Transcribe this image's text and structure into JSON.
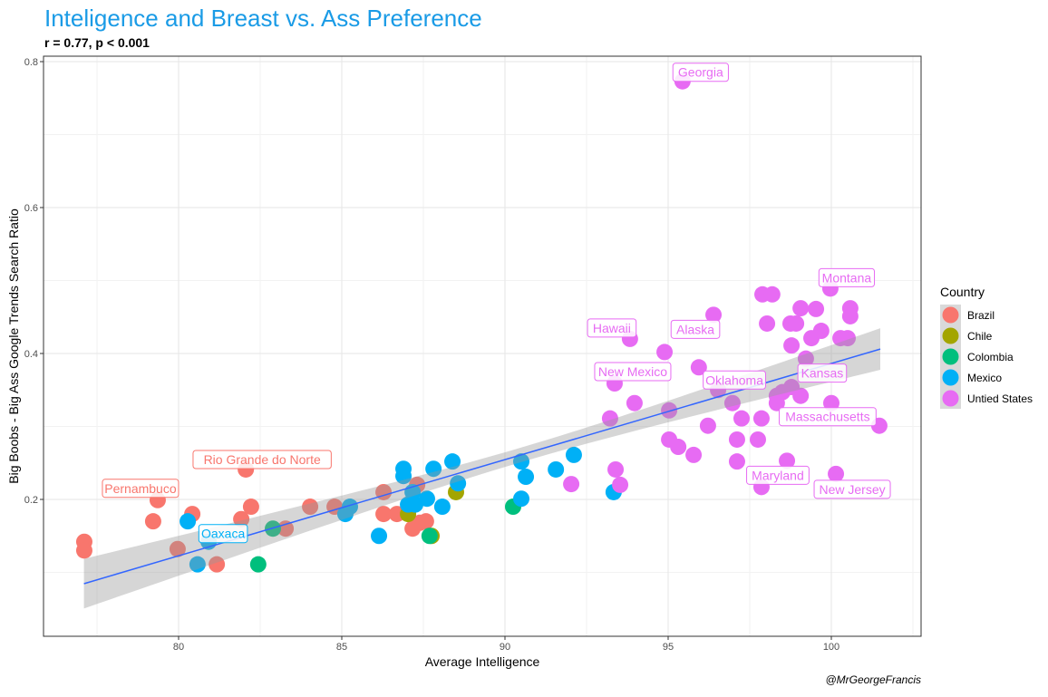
{
  "chart_data": {
    "type": "scatter",
    "title": "Inteligence and Breast vs. Ass Preference",
    "subtitle": "r = 0.77, p < 0.001",
    "xlabel": "Average Intelligence",
    "ylabel": "Big Boobs - Big Ass Google Trends Search Ratio",
    "caption": "@MrGeorgeFrancis",
    "xlim": [
      76.7,
      103.5
    ],
    "ylim": [
      0.012,
      0.807
    ],
    "xticks": [
      80,
      85,
      90,
      95,
      100
    ],
    "xtick_labels": [
      "80",
      "85",
      "90",
      "95",
      "100"
    ],
    "yticks": [
      0.2,
      0.4,
      0.6,
      0.8
    ],
    "ytick_labels": [
      "0.2",
      "0.4",
      "0.6",
      "0.8"
    ],
    "grid": true,
    "legend": {
      "title": "Country",
      "placement": "right"
    },
    "trend": {
      "x_start": 77.1,
      "x_end": 101.5,
      "y_start": 0.0845,
      "slope": 0.01318,
      "ci_center_x": 90.5,
      "ci_min_halfwidth": 0.01,
      "ci_k": 5.88e-06
    },
    "colors": {
      "Brazil": "#F8766D",
      "Chile": "#A3A500",
      "Colombia": "#00BF7D",
      "Mexico": "#00B0F6",
      "Untied States": "#E76BF3",
      "trend": "#3366FF",
      "title": "#1a9be6"
    },
    "series": [
      {
        "name": "Brazil",
        "points": [
          [
            77.11,
            0.142
          ],
          [
            77.11,
            0.13
          ],
          [
            79.22,
            0.17
          ],
          [
            79.36,
            0.199,
            "Pernambuco"
          ],
          [
            79.97,
            0.132
          ],
          [
            80.42,
            0.18
          ],
          [
            81.17,
            0.111
          ],
          [
            81.92,
            0.173
          ],
          [
            82.06,
            0.241,
            "Rio Grande do Norte"
          ],
          [
            82.22,
            0.19
          ],
          [
            83.28,
            0.16
          ],
          [
            84.03,
            0.19
          ],
          [
            84.78,
            0.19
          ],
          [
            86.28,
            0.21
          ],
          [
            86.28,
            0.18
          ],
          [
            86.69,
            0.18
          ],
          [
            87.31,
            0.22
          ],
          [
            87.17,
            0.16
          ],
          [
            87.58,
            0.17
          ],
          [
            87.39,
            0.168
          ]
        ]
      },
      {
        "name": "Chile",
        "points": [
          [
            87.03,
            0.18
          ],
          [
            87.75,
            0.15
          ],
          [
            88.5,
            0.21
          ]
        ]
      },
      {
        "name": "Colombia",
        "points": [
          [
            82.89,
            0.16
          ],
          [
            82.44,
            0.111
          ],
          [
            90.25,
            0.19
          ],
          [
            87.69,
            0.15
          ]
        ]
      },
      {
        "name": "Mexico",
        "points": [
          [
            80.28,
            0.17
          ],
          [
            80.58,
            0.111
          ],
          [
            80.92,
            0.142,
            "Oaxaca"
          ],
          [
            85.11,
            0.18
          ],
          [
            85.25,
            0.19
          ],
          [
            86.14,
            0.15
          ],
          [
            86.89,
            0.242
          ],
          [
            86.89,
            0.232
          ],
          [
            87.81,
            0.242
          ],
          [
            88.39,
            0.252
          ],
          [
            88.56,
            0.222
          ],
          [
            88.08,
            0.19
          ],
          [
            87.61,
            0.201
          ],
          [
            87.25,
            0.193
          ],
          [
            87.03,
            0.193
          ],
          [
            87.17,
            0.21
          ],
          [
            90.5,
            0.252
          ],
          [
            90.64,
            0.231
          ],
          [
            91.56,
            0.241
          ],
          [
            92.11,
            0.261
          ],
          [
            90.5,
            0.201
          ],
          [
            93.33,
            0.21
          ]
        ]
      },
      {
        "name": "Untied States",
        "points": [
          [
            95.44,
            0.773,
            "Georgia"
          ],
          [
            97.89,
            0.481
          ],
          [
            98.19,
            0.481
          ],
          [
            99.06,
            0.462
          ],
          [
            99.53,
            0.461
          ],
          [
            100.58,
            0.462
          ],
          [
            100.58,
            0.451
          ],
          [
            96.39,
            0.453,
            "Alaska"
          ],
          [
            93.83,
            0.42,
            "Hawaii"
          ],
          [
            94.89,
            0.402
          ],
          [
            98.03,
            0.441
          ],
          [
            98.75,
            0.441
          ],
          [
            98.92,
            0.441
          ],
          [
            99.39,
            0.421
          ],
          [
            99.69,
            0.431
          ],
          [
            100.28,
            0.421
          ],
          [
            100.5,
            0.421
          ],
          [
            98.78,
            0.411
          ],
          [
            99.22,
            0.393,
            "Kansas"
          ],
          [
            95.94,
            0.381
          ],
          [
            93.36,
            0.359,
            "New Mexico"
          ],
          [
            96.53,
            0.35,
            "Oklahoma"
          ],
          [
            98.78,
            0.354
          ],
          [
            93.97,
            0.332
          ],
          [
            93.22,
            0.311
          ],
          [
            95.03,
            0.322
          ],
          [
            96.97,
            0.332
          ],
          [
            98.33,
            0.342
          ],
          [
            98.5,
            0.347
          ],
          [
            99.06,
            0.342
          ],
          [
            98.33,
            0.332
          ],
          [
            100.0,
            0.332
          ],
          [
            97.25,
            0.311
          ],
          [
            97.86,
            0.311
          ],
          [
            101.47,
            0.301,
            "Massachusetts"
          ],
          [
            96.22,
            0.301
          ],
          [
            95.03,
            0.282
          ],
          [
            95.31,
            0.272
          ],
          [
            95.78,
            0.261
          ],
          [
            97.11,
            0.282
          ],
          [
            97.75,
            0.282
          ],
          [
            97.11,
            0.252
          ],
          [
            98.64,
            0.253
          ],
          [
            100.14,
            0.235,
            "New Jersey"
          ],
          [
            97.86,
            0.217,
            "Maryland"
          ],
          [
            93.39,
            0.241
          ],
          [
            93.53,
            0.22
          ],
          [
            92.03,
            0.221
          ],
          [
            99.97,
            0.489,
            "Montana"
          ]
        ]
      }
    ]
  }
}
